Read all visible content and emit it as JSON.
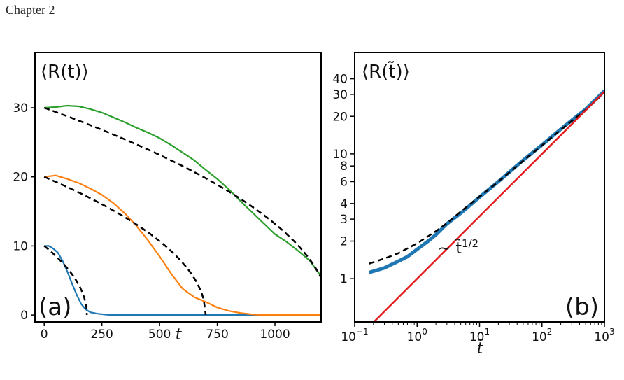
{
  "header": {
    "chapter": "Chapter 2"
  },
  "chart_data": [
    {
      "type": "line",
      "title": "⟨R(t)⟩",
      "panel_label": "(a)",
      "xlabel": "t",
      "ylabel": "",
      "xlim": [
        -40,
        1200
      ],
      "ylim": [
        -1,
        38
      ],
      "xticks": [
        0,
        250,
        500,
        750,
        1000
      ],
      "yticks": [
        0,
        10,
        20,
        30
      ],
      "series": [
        {
          "color": "#1f77b4",
          "style": "solid",
          "x": [
            0,
            20,
            40,
            60,
            80,
            100,
            120,
            140,
            160,
            180,
            200,
            230,
            270,
            300,
            600,
            1200
          ],
          "y": [
            10,
            10,
            9.6,
            9,
            7.8,
            6.3,
            4.6,
            3,
            1.6,
            0.8,
            0.4,
            0.2,
            0.05,
            0,
            0,
            0
          ]
        },
        {
          "color": "#ff7f0e",
          "style": "solid",
          "x": [
            0,
            50,
            100,
            150,
            200,
            250,
            300,
            350,
            400,
            450,
            500,
            550,
            600,
            650,
            700,
            750,
            800,
            850,
            900,
            950,
            1200
          ],
          "y": [
            20,
            20.2,
            19.7,
            19.1,
            18.3,
            17.4,
            16.2,
            14.7,
            12.9,
            10.8,
            8.5,
            6.0,
            3.8,
            2.6,
            1.9,
            1.1,
            0.6,
            0.3,
            0.1,
            0,
            0
          ]
        },
        {
          "color": "#2ca02c",
          "style": "solid",
          "x": [
            0,
            50,
            100,
            150,
            200,
            250,
            300,
            350,
            400,
            450,
            500,
            550,
            600,
            650,
            700,
            750,
            800,
            850,
            900,
            950,
            1000,
            1050,
            1100,
            1150,
            1200
          ],
          "y": [
            30,
            30.1,
            30.3,
            30.2,
            29.8,
            29.3,
            28.6,
            27.9,
            27.1,
            26.4,
            25.6,
            24.6,
            23.5,
            22.4,
            21.0,
            19.7,
            18.2,
            16.5,
            14.9,
            13.3,
            11.7,
            10.6,
            9.3,
            7.9,
            5.6
          ]
        },
        {
          "color": "#000000",
          "style": "dashed",
          "function": "sqrt",
          "R0": 10,
          "t_end": 185
        },
        {
          "color": "#000000",
          "style": "dashed",
          "function": "sqrt",
          "R0": 20,
          "t_end": 700
        },
        {
          "color": "#000000",
          "style": "dashed",
          "function": "sqrt",
          "R0": 30,
          "t_end": 1240
        }
      ]
    },
    {
      "type": "line",
      "title": "⟨R(t̃)⟩",
      "panel_label": "(b)",
      "xlabel": "t̃",
      "ylabel": "",
      "xscale": "log",
      "yscale": "log",
      "xlim": [
        0.1,
        1000
      ],
      "ylim": [
        0.45,
        65
      ],
      "xtick_labels": [
        {
          "base": "10",
          "exp": "−1"
        },
        {
          "base": "10",
          "exp": "0"
        },
        {
          "base": "10",
          "exp": "1"
        },
        {
          "base": "10",
          "exp": "2"
        },
        {
          "base": "10",
          "exp": "3"
        }
      ],
      "yticks": [
        "1",
        "2",
        "3",
        "4",
        "6",
        "8",
        "10",
        "20",
        "30",
        "40"
      ],
      "annotation": {
        "base": "∼ t̃",
        "exp": "1/2"
      },
      "series": [
        {
          "color": "#1f77b4",
          "style": "solid",
          "x": [
            0.17,
            0.3,
            0.5,
            0.7,
            1,
            1.5,
            2,
            3,
            5,
            10,
            20,
            50,
            100,
            200,
            500,
            1000
          ],
          "y": [
            1.12,
            1.22,
            1.38,
            1.5,
            1.72,
            2.0,
            2.25,
            2.75,
            3.35,
            4.5,
            6.0,
            8.9,
            11.8,
            15.8,
            22.8,
            32
          ]
        },
        {
          "color": "#000000",
          "style": "dashed",
          "x": [
            0.17,
            0.3,
            0.5,
            1,
            2,
            3,
            5,
            10,
            20,
            50,
            100,
            200,
            500,
            1000
          ],
          "y": [
            1.32,
            1.45,
            1.6,
            1.92,
            2.4,
            2.78,
            3.45,
            4.55,
            6.0,
            8.8,
            11.7,
            15.6,
            22.5,
            31
          ]
        },
        {
          "color": "#e41a1c",
          "style": "solid",
          "function": "power",
          "coef": 1.0,
          "exponent": 0.5,
          "x": [
            0.17,
            1000
          ]
        }
      ]
    }
  ]
}
